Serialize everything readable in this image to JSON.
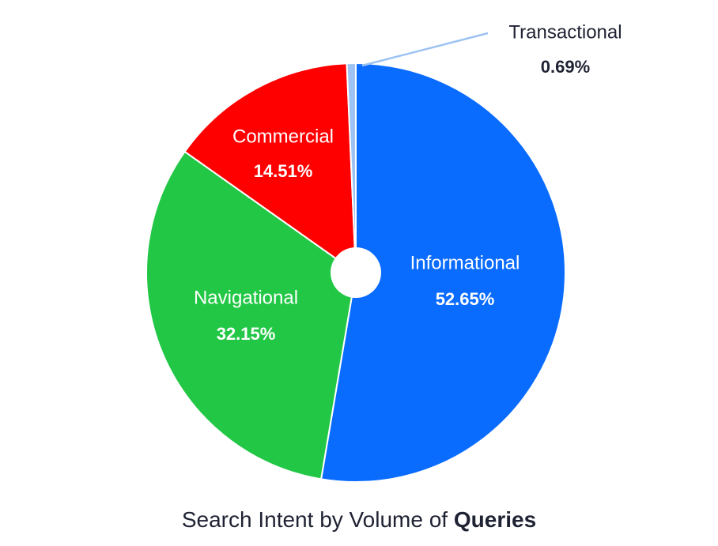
{
  "chart_data": {
    "type": "pie",
    "title": "Search Intent by Volume of",
    "title_emphasis": "Queries",
    "slices": [
      {
        "label": "Informational",
        "value": 52.65,
        "display": "52.65%",
        "color": "#0a6cff"
      },
      {
        "label": "Navigational",
        "value": 32.15,
        "display": "32.15%",
        "color": "#22c745"
      },
      {
        "label": "Commercial",
        "value": 14.51,
        "display": "14.51%",
        "color": "#ff0000"
      },
      {
        "label": "Transactional",
        "value": 0.69,
        "display": "0.69%",
        "color": "#9ec3f2"
      }
    ],
    "donut_hole": true,
    "legend": "none"
  }
}
